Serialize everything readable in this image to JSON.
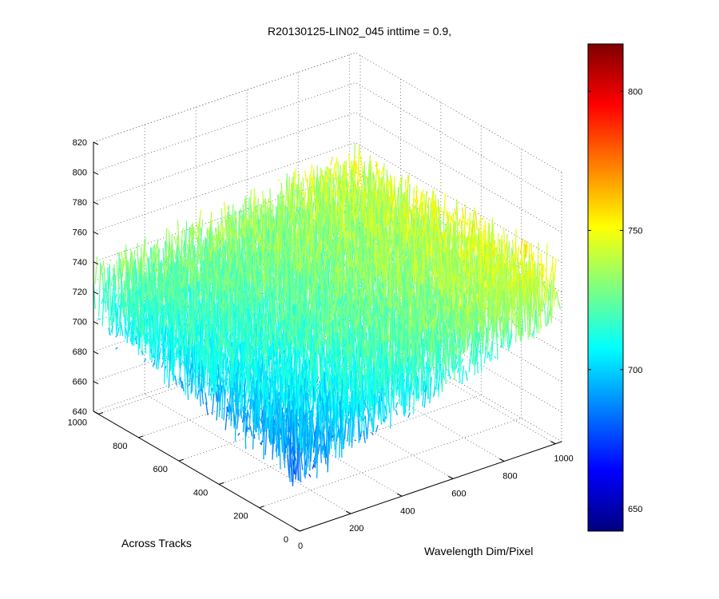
{
  "chart_data": {
    "type": "surface",
    "title": "R20130125-LIN02_045 inttime = 0.9,",
    "xlabel": "Wavelength Dim/Pixel",
    "ylabel": "Across Tracks",
    "zlabel": "",
    "x_ticks": [
      "0",
      "200",
      "400",
      "600",
      "800",
      "1000"
    ],
    "y_ticks": [
      "0",
      "200",
      "400",
      "600",
      "800",
      "1000"
    ],
    "z_ticks": [
      "640",
      "660",
      "680",
      "700",
      "720",
      "740",
      "760",
      "780",
      "800",
      "820"
    ],
    "xlim": [
      0,
      1024
    ],
    "ylim": [
      0,
      1024
    ],
    "zlim": [
      640,
      820
    ],
    "colorbar": {
      "range": [
        642,
        817
      ],
      "ticks": [
        "650",
        "700",
        "750",
        "800"
      ],
      "colormap": "jet"
    },
    "grid": true,
    "surface_trend": {
      "x": [
        0,
        200,
        400,
        600,
        800,
        1024
      ],
      "z_near_track_0": [
        690,
        700,
        712,
        722,
        732,
        742
      ],
      "z_far_track_1000": [
        718,
        722,
        725,
        728,
        732,
        735
      ],
      "noise_amplitude": 25
    }
  }
}
